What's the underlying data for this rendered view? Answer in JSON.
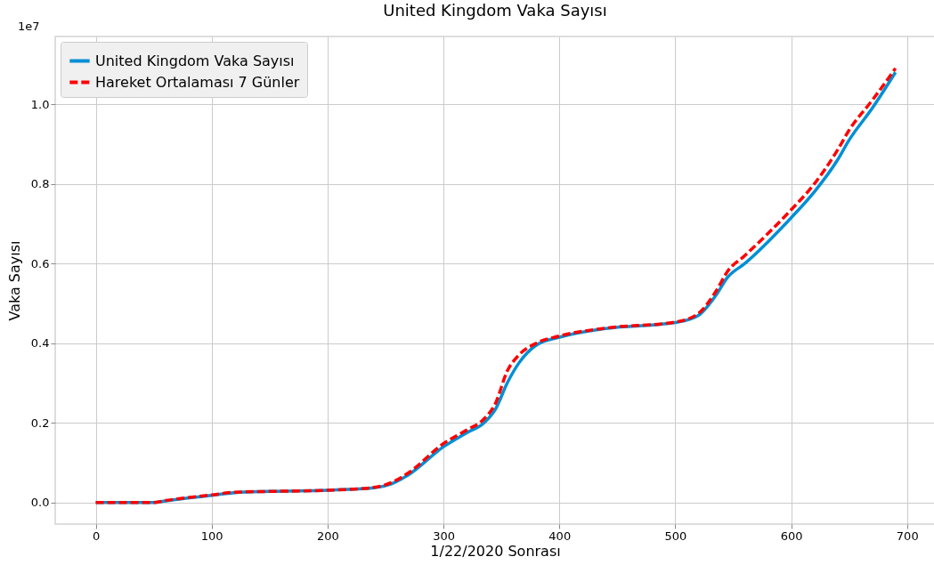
{
  "chart_data": {
    "type": "line",
    "title": "United Kingdom Vaka Sayısı",
    "xlabel": "1/22/2020 Sonrası",
    "ylabel": "Vaka Sayısı",
    "annotations": [
      "1e7"
    ],
    "x": [
      0,
      50,
      60,
      70,
      100,
      120,
      150,
      200,
      240,
      255,
      270,
      300,
      320,
      335,
      345,
      355,
      365,
      380,
      400,
      440,
      500,
      520,
      535,
      545,
      560,
      600,
      620,
      640,
      650,
      670,
      690
    ],
    "series": [
      {
        "name": "United Kingdom Vaka Sayısı",
        "color": "#008fd5",
        "line_style": "solid",
        "values": [
          0,
          0,
          0.004,
          0.008,
          0.018,
          0.025,
          0.028,
          0.031,
          0.037,
          0.047,
          0.07,
          0.14,
          0.175,
          0.2,
          0.235,
          0.3,
          0.35,
          0.395,
          0.415,
          0.437,
          0.452,
          0.47,
          0.52,
          0.565,
          0.6,
          0.715,
          0.78,
          0.86,
          0.91,
          0.99,
          1.08
        ]
      },
      {
        "name": "Hareket Ortalaması 7 Günler",
        "color": "#ff0000",
        "line_style": "dashed",
        "values": [
          0,
          0,
          0.005,
          0.009,
          0.019,
          0.026,
          0.028,
          0.031,
          0.038,
          0.05,
          0.075,
          0.148,
          0.182,
          0.21,
          0.25,
          0.33,
          0.37,
          0.4,
          0.418,
          0.438,
          0.453,
          0.475,
          0.53,
          0.58,
          0.62,
          0.735,
          0.8,
          0.885,
          0.935,
          1.01,
          1.09
        ]
      }
    ],
    "xlim": [
      -35,
      724
    ],
    "ylim": [
      -0.054,
      1.17
    ],
    "xticks": [
      0,
      100,
      200,
      300,
      400,
      500,
      600,
      700
    ],
    "yticks": [
      {
        "value": 0,
        "label": "0.0"
      },
      {
        "value": 0.2,
        "label": "0.2"
      },
      {
        "value": 0.4,
        "label": "0.4"
      },
      {
        "value": 0.6,
        "label": "0.6"
      },
      {
        "value": 0.8,
        "label": "0.8"
      },
      {
        "value": 1,
        "label": "1.0"
      }
    ],
    "grid": true,
    "legend": "top left",
    "marker": "none"
  }
}
